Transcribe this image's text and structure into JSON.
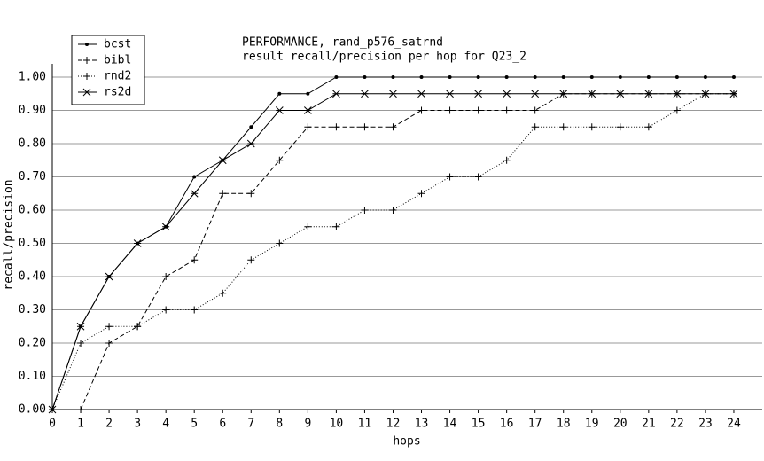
{
  "chart_data": {
    "type": "line",
    "title": "PERFORMANCE, rand_p576_satrnd",
    "subtitle": "result recall/precision per hop for Q23_2",
    "x_label": "hops",
    "y_label": "recall/precision",
    "x": [
      0,
      1,
      2,
      3,
      4,
      5,
      6,
      7,
      8,
      9,
      10,
      11,
      12,
      13,
      14,
      15,
      16,
      17,
      18,
      19,
      20,
      21,
      22,
      23,
      24
    ],
    "xlim": [
      0,
      25
    ],
    "xticks": [
      0,
      1,
      2,
      3,
      4,
      5,
      6,
      7,
      8,
      9,
      10,
      11,
      12,
      13,
      14,
      15,
      16,
      17,
      18,
      19,
      20,
      21,
      22,
      23,
      24
    ],
    "ylim": [
      0,
      1
    ],
    "yticks": [
      {
        "value": 0,
        "label": "0.00"
      },
      {
        "value": 0.1,
        "label": "0.10"
      },
      {
        "value": 0.2,
        "label": "0.20"
      },
      {
        "value": 0.3,
        "label": "0.30"
      },
      {
        "value": 0.4,
        "label": "0.40"
      },
      {
        "value": 0.5,
        "label": "0.50"
      },
      {
        "value": 0.6,
        "label": "0.60"
      },
      {
        "value": 0.7,
        "label": "0.70"
      },
      {
        "value": 0.8,
        "label": "0.80"
      },
      {
        "value": 0.9,
        "label": "0.90"
      },
      {
        "value": 1,
        "label": "1.00"
      }
    ],
    "grid": true,
    "legend": "top-left",
    "series": [
      {
        "name": "bcst",
        "color": "#000000",
        "dash": "solid",
        "marker": "dot",
        "values": [
          0,
          0.25,
          0.4,
          0.5,
          0.55,
          0.7,
          0.75,
          0.85,
          0.95,
          0.95,
          1,
          1,
          1,
          1,
          1,
          1,
          1,
          1,
          1,
          1,
          1,
          1,
          1,
          1,
          1
        ]
      },
      {
        "name": "bibl",
        "color": "#000000",
        "dash": "dashed",
        "marker": "plus",
        "values": [
          0,
          0,
          0.2,
          0.25,
          0.4,
          0.45,
          0.65,
          0.65,
          0.75,
          0.85,
          0.85,
          0.85,
          0.85,
          0.9,
          0.9,
          0.9,
          0.9,
          0.9,
          0.95,
          0.95,
          0.95,
          0.95,
          0.95,
          0.95,
          0.95
        ]
      },
      {
        "name": "rnd2",
        "color": "#000000",
        "dash": "dotted",
        "marker": "plus",
        "values": [
          0,
          0.2,
          0.25,
          0.25,
          0.3,
          0.3,
          0.35,
          0.45,
          0.5,
          0.55,
          0.55,
          0.6,
          0.6,
          0.65,
          0.7,
          0.7,
          0.75,
          0.85,
          0.85,
          0.85,
          0.85,
          0.85,
          0.9,
          0.95,
          0.95
        ]
      },
      {
        "name": "rs2d",
        "color": "#000000",
        "dash": "solid",
        "marker": "cross",
        "values": [
          0,
          0.25,
          0.4,
          0.5,
          0.55,
          0.65,
          0.75,
          0.8,
          0.9,
          0.9,
          0.95,
          0.95,
          0.95,
          0.95,
          0.95,
          0.95,
          0.95,
          0.95,
          0.95,
          0.95,
          0.95,
          0.95,
          0.95,
          0.95,
          0.95
        ]
      }
    ]
  }
}
